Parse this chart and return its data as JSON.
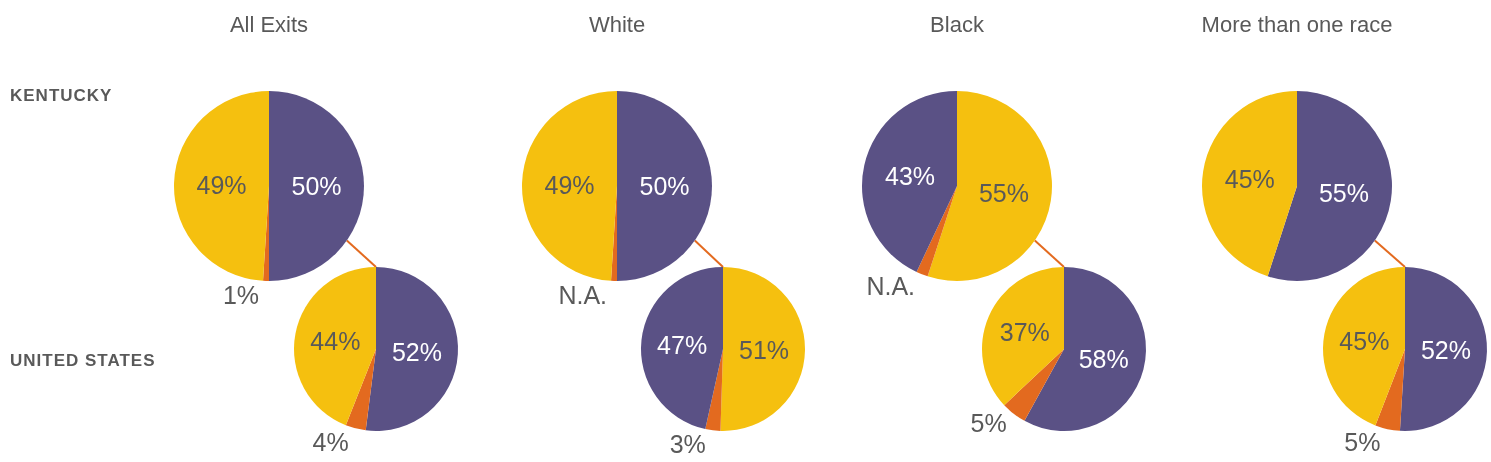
{
  "chart_data": [
    {
      "type": "pie",
      "title": "All Exits",
      "annotations": [
        "KENTUCKY"
      ],
      "categories": [
        null,
        null,
        null
      ],
      "values": [
        50,
        1,
        49
      ],
      "value_labels": [
        "50%",
        "1%",
        "49%"
      ],
      "colors": [
        "#5a5185",
        "#e36a1f",
        "#f5c00f"
      ]
    },
    {
      "type": "pie",
      "title": "White",
      "categories": [
        null,
        null,
        null
      ],
      "values": [
        50,
        1,
        49
      ],
      "value_labels": [
        "50%",
        "N.A.",
        "49%"
      ],
      "colors": [
        "#5a5185",
        "#e36a1f",
        "#f5c00f"
      ]
    },
    {
      "type": "pie",
      "title": "Black",
      "categories": [
        null,
        null,
        null
      ],
      "values": [
        55,
        2,
        43
      ],
      "value_labels": [
        "55%",
        "N.A.",
        "43%"
      ],
      "colors": [
        "#f5c00f",
        "#e36a1f",
        "#5a5185"
      ]
    },
    {
      "type": "pie",
      "title": "More than one race",
      "categories": [
        null,
        null
      ],
      "values": [
        55,
        45
      ],
      "value_labels": [
        "55%",
        "45%"
      ],
      "colors": [
        "#5a5185",
        "#f5c00f"
      ]
    },
    {
      "type": "pie",
      "annotations": [
        "UNITED STATES"
      ],
      "categories": [
        null,
        null,
        null
      ],
      "values": [
        52,
        4,
        44
      ],
      "value_labels": [
        "52%",
        "4%",
        "44%"
      ],
      "colors": [
        "#5a5185",
        "#e36a1f",
        "#f5c00f"
      ]
    },
    {
      "type": "pie",
      "categories": [
        null,
        null,
        null
      ],
      "values": [
        51,
        3,
        47
      ],
      "value_labels": [
        "51%",
        "3%",
        "47%"
      ],
      "colors": [
        "#f5c00f",
        "#e36a1f",
        "#5a5185"
      ]
    },
    {
      "type": "pie",
      "categories": [
        null,
        null,
        null
      ],
      "values": [
        58,
        5,
        37
      ],
      "value_labels": [
        "58%",
        "5%",
        "37%"
      ],
      "colors": [
        "#5a5185",
        "#e36a1f",
        "#f5c00f"
      ]
    },
    {
      "type": "pie",
      "categories": [
        null,
        null,
        null
      ],
      "values": [
        52,
        5,
        45
      ],
      "value_labels": [
        "52%",
        "5%",
        "45%"
      ],
      "colors": [
        "#5a5185",
        "#e36a1f",
        "#f5c00f"
      ]
    }
  ]
}
